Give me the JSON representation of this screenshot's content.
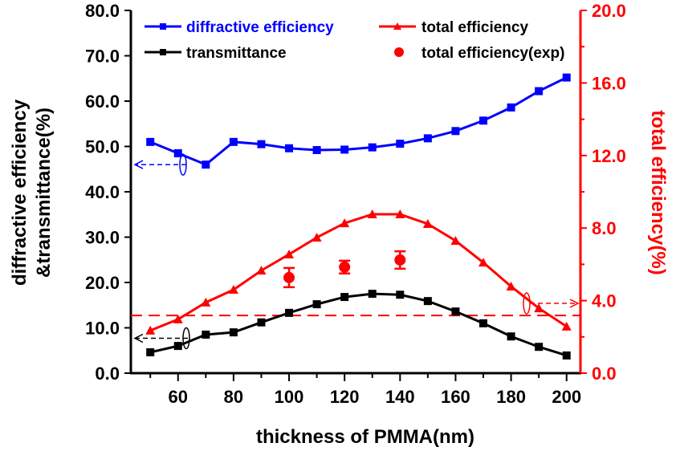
{
  "chart_data": {
    "type": "line",
    "title": "",
    "xlabel": "thickness of  PMMA(nm)",
    "ylabel_left": [
      "diffractive efficiency",
      "&transmittance(%)"
    ],
    "ylabel_right": "total efficiency(%)",
    "xlim": [
      43,
      205
    ],
    "ylim_left": [
      0,
      80
    ],
    "ylim_right": [
      0,
      20
    ],
    "xticks": [
      "60",
      "80",
      "100",
      "120",
      "140",
      "160",
      "180",
      "200"
    ],
    "yticks_left": [
      "0.0",
      "10.0",
      "20.0",
      "30.0",
      "40.0",
      "50.0",
      "60.0",
      "70.0",
      "80.0"
    ],
    "yticks_right": [
      "0.0",
      "4.0",
      "8.0",
      "12.0",
      "16.0",
      "20.0"
    ],
    "grid": false,
    "legend_placement": "top",
    "colors": {
      "diffractive": "#0000ff",
      "total": "#ff0000",
      "transmittance": "#000000",
      "right_axis": "#ff0000"
    },
    "x": [
      50,
      60,
      70,
      80,
      90,
      100,
      110,
      120,
      130,
      140,
      150,
      160,
      170,
      180,
      190,
      200
    ],
    "series": [
      {
        "name": "diffractive efficiency",
        "axis": "left",
        "marker": "square",
        "color": "#0000ff",
        "values": [
          51.0,
          48.5,
          46.0,
          51.0,
          50.5,
          49.6,
          49.2,
          49.3,
          49.8,
          50.6,
          51.8,
          53.4,
          55.7,
          58.6,
          62.2,
          65.2
        ]
      },
      {
        "name": "transmittance",
        "axis": "left",
        "marker": "square",
        "color": "#000000",
        "values": [
          4.6,
          6.0,
          8.5,
          9.0,
          11.2,
          13.3,
          15.2,
          16.8,
          17.5,
          17.3,
          15.9,
          13.6,
          11.0,
          8.1,
          5.8,
          3.9
        ]
      },
      {
        "name": "total efficiency",
        "axis": "right",
        "marker": "triangle",
        "color": "#ff0000",
        "values": [
          2.35,
          2.97,
          3.9,
          4.6,
          5.66,
          6.55,
          7.48,
          8.27,
          8.76,
          8.76,
          8.23,
          7.3,
          6.1,
          4.78,
          3.58,
          2.57
        ]
      },
      {
        "name": "total efficiency(exp)",
        "axis": "right",
        "marker": "circle",
        "color": "#ff0000",
        "x": [
          100,
          120,
          140
        ],
        "values": [
          5.27,
          5.85,
          6.24
        ],
        "error": [
          0.53,
          0.35,
          0.48
        ]
      }
    ],
    "reference_line": {
      "axis": "right",
      "value": 3.18,
      "style": "dashed",
      "color": "#ff0000"
    },
    "annotations": [
      {
        "series": "diffractive efficiency",
        "points_to": "left axis"
      },
      {
        "series": "transmittance",
        "points_to": "left axis"
      },
      {
        "series": "total efficiency",
        "points_to": "right axis"
      }
    ]
  }
}
